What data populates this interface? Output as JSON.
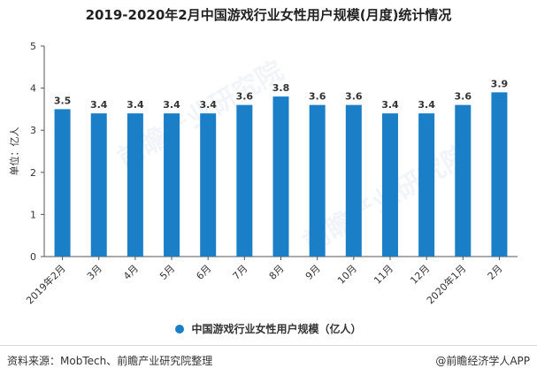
{
  "title": "2019-2020年2月中国游戏行业女性用户规模(月度)统计情况",
  "legend_label": "中国游戏行业女性用户规模（亿人）",
  "source": "资料来源：MobTech、前瞻产业研究院整理",
  "brand": "@前瞻经济学人APP",
  "watermark": "前瞻产业研究院",
  "colors": {
    "bar": "#1a7fc6",
    "axis": "#555555",
    "text": "#333333"
  },
  "chart_data": {
    "type": "bar",
    "categories": [
      "2019年2月",
      "3月",
      "4月",
      "5月",
      "6月",
      "7月",
      "8月",
      "9月",
      "10月",
      "11月",
      "12月",
      "2020年1月",
      "2月"
    ],
    "values": [
      3.5,
      3.4,
      3.4,
      3.4,
      3.4,
      3.6,
      3.8,
      3.6,
      3.6,
      3.4,
      3.4,
      3.6,
      3.9
    ],
    "ylabel": "单位：亿人",
    "ylim": [
      0,
      5
    ],
    "yticks": [
      0,
      1,
      2,
      3,
      4,
      5
    ],
    "legend": "bottom-center",
    "grid": false
  }
}
